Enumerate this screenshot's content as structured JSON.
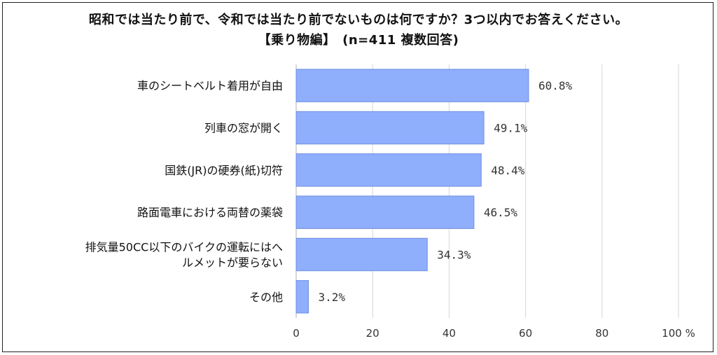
{
  "title_line1": "昭和では当たり前で、令和では当たり前でないものは何ですか？3つ以内でお答えください。",
  "title_line2": "【乗り物編】　(n=411 複数回答)",
  "chart_data": {
    "type": "bar",
    "orientation": "horizontal",
    "categories": [
      "車のシートベルト着用が自由",
      "列車の窓が開く",
      "国鉄(JR)の硬券(紙)切符",
      "路面電車における両替の薬袋",
      "排気量50CC以下のバイクの運転にはヘルメットが要らない",
      "その他"
    ],
    "category_label_lines": [
      [
        "車のシートベルト着用が自由"
      ],
      [
        "列車の窓が開く"
      ],
      [
        "国鉄(JR)の硬券(紙)切符"
      ],
      [
        "路面電車における両替の薬袋"
      ],
      [
        "排気量50CC以下のバイクの運転にはへ",
        "ルメットが要らない"
      ],
      [
        "その他"
      ]
    ],
    "values": [
      60.8,
      49.1,
      48.4,
      46.5,
      34.3,
      3.2
    ],
    "value_labels": [
      "60.8%",
      "49.1%",
      "48.4%",
      "46.5%",
      "34.3%",
      "3.2%"
    ],
    "xlim": [
      0,
      100
    ],
    "xticks": [
      0,
      20,
      40,
      60,
      80,
      100
    ],
    "xtick_labels": [
      "0",
      "20",
      "40",
      "60",
      "80",
      "100 %"
    ],
    "bar_color": "#8faefc",
    "bar_edge_color": "#6f8fe0",
    "grid": true,
    "grid_color": "#d6d6d6"
  }
}
